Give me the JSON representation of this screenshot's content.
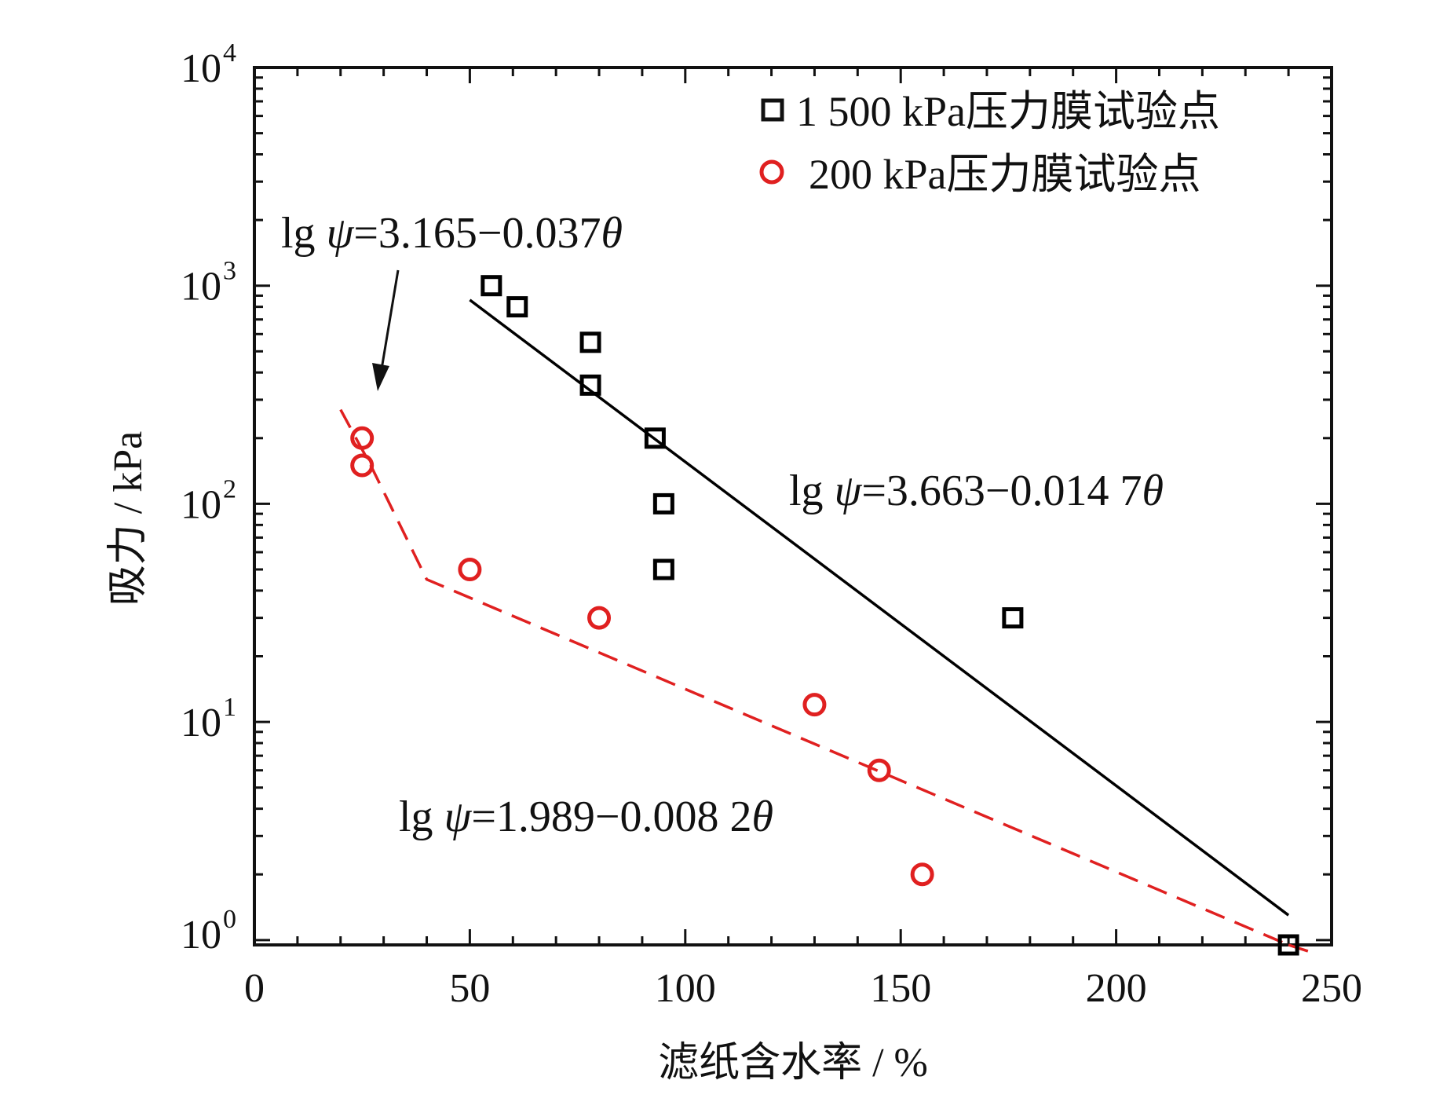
{
  "chart_data": {
    "type": "scatter",
    "xlabel": "滤纸含水率 / %",
    "ylabel": "吸力 / kPa",
    "xlim": [
      0,
      250
    ],
    "ylim": [
      0.95,
      10000
    ],
    "yscale": "log",
    "xticks": [
      0,
      50,
      100,
      150,
      200,
      250
    ],
    "yticks": [
      1,
      10,
      100,
      1000,
      10000
    ],
    "ytick_labels": [
      {
        "base": "10",
        "exp": "0"
      },
      {
        "base": "10",
        "exp": "1"
      },
      {
        "base": "10",
        "exp": "2"
      },
      {
        "base": "10",
        "exp": "3"
      },
      {
        "base": "10",
        "exp": "4"
      }
    ],
    "series": [
      {
        "name": "1 500 kPa压力膜试验点",
        "marker": "square",
        "color": "#000000",
        "points": [
          {
            "x": 55,
            "y": 1000
          },
          {
            "x": 61,
            "y": 800
          },
          {
            "x": 78,
            "y": 550
          },
          {
            "x": 78,
            "y": 350
          },
          {
            "x": 93,
            "y": 200
          },
          {
            "x": 95,
            "y": 100
          },
          {
            "x": 95,
            "y": 50
          },
          {
            "x": 176,
            "y": 30
          },
          {
            "x": 240,
            "y": 0.95
          }
        ]
      },
      {
        "name": "200 kPa压力膜试验点",
        "marker": "circle",
        "color": "#e02020",
        "points": [
          {
            "x": 25,
            "y": 200
          },
          {
            "x": 25,
            "y": 150
          },
          {
            "x": 50,
            "y": 50
          },
          {
            "x": 80,
            "y": 30
          },
          {
            "x": 130,
            "y": 12
          },
          {
            "x": 145,
            "y": 6
          },
          {
            "x": 155,
            "y": 2
          }
        ]
      }
    ],
    "fit_lines": [
      {
        "style": "solid",
        "color": "#000000",
        "x": [
          50,
          240
        ],
        "y": [
          860,
          1.3
        ]
      },
      {
        "style": "dashed",
        "color": "#e02020",
        "x": [
          20,
          27,
          40,
          240
        ],
        "y": [
          270,
          150,
          45,
          0.95
        ]
      },
      {
        "style": "dashed",
        "color": "#e02020",
        "x": [
          240,
          246
        ],
        "y": [
          0.95,
          0.87
        ]
      }
    ],
    "annotations": [
      {
        "id": "eq1",
        "prefix": "lg ",
        "psi": "ψ",
        "mid": "=3.165−0.037",
        "theta": "θ"
      },
      {
        "id": "eq2",
        "prefix": "lg ",
        "psi": "ψ",
        "mid": "=3.663−0.014 7",
        "theta": "θ"
      },
      {
        "id": "eq3",
        "prefix": "lg ",
        "psi": "ψ",
        "mid": "=1.989−0.008 2",
        "theta": "θ"
      }
    ]
  }
}
